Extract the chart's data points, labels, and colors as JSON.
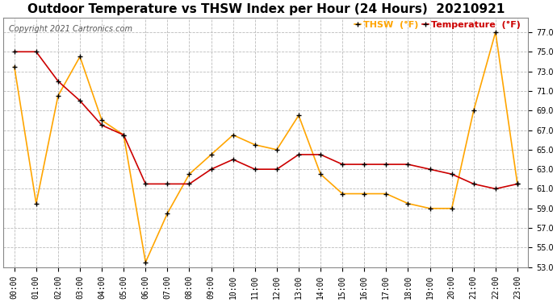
{
  "title": "Outdoor Temperature vs THSW Index per Hour (24 Hours)  20210921",
  "copyright": "Copyright 2021 Cartronics.com",
  "hours": [
    "00:00",
    "01:00",
    "02:00",
    "03:00",
    "04:00",
    "05:00",
    "06:00",
    "07:00",
    "08:00",
    "09:00",
    "10:00",
    "11:00",
    "12:00",
    "13:00",
    "14:00",
    "15:00",
    "16:00",
    "17:00",
    "18:00",
    "19:00",
    "20:00",
    "21:00",
    "22:00",
    "23:00"
  ],
  "temperature": [
    75.0,
    75.0,
    72.0,
    70.0,
    67.5,
    66.5,
    61.5,
    61.5,
    61.5,
    63.0,
    64.0,
    63.0,
    63.0,
    64.5,
    64.5,
    63.5,
    63.5,
    63.5,
    63.5,
    63.0,
    62.5,
    61.5,
    61.0,
    61.5
  ],
  "thsw": [
    73.5,
    59.5,
    70.5,
    74.5,
    68.0,
    66.5,
    53.5,
    58.5,
    62.5,
    64.5,
    66.5,
    65.5,
    65.0,
    68.5,
    62.5,
    60.5,
    60.5,
    60.5,
    59.5,
    59.0,
    59.0,
    69.0,
    77.0,
    61.5
  ],
  "thsw_color": "#FFA500",
  "temp_color": "#CC0000",
  "bg_color": "#FFFFFF",
  "grid_color": "#BBBBBB",
  "ylim_min": 53.0,
  "ylim_max": 78.5,
  "yticks": [
    53.0,
    55.0,
    57.0,
    59.0,
    61.0,
    63.0,
    65.0,
    67.0,
    69.0,
    71.0,
    73.0,
    75.0,
    77.0
  ],
  "legend_thsw": "THSW  (°F)",
  "legend_temp": "Temperature  (°F)",
  "title_fontsize": 11,
  "copyright_fontsize": 7,
  "legend_fontsize": 8,
  "tick_fontsize": 7
}
